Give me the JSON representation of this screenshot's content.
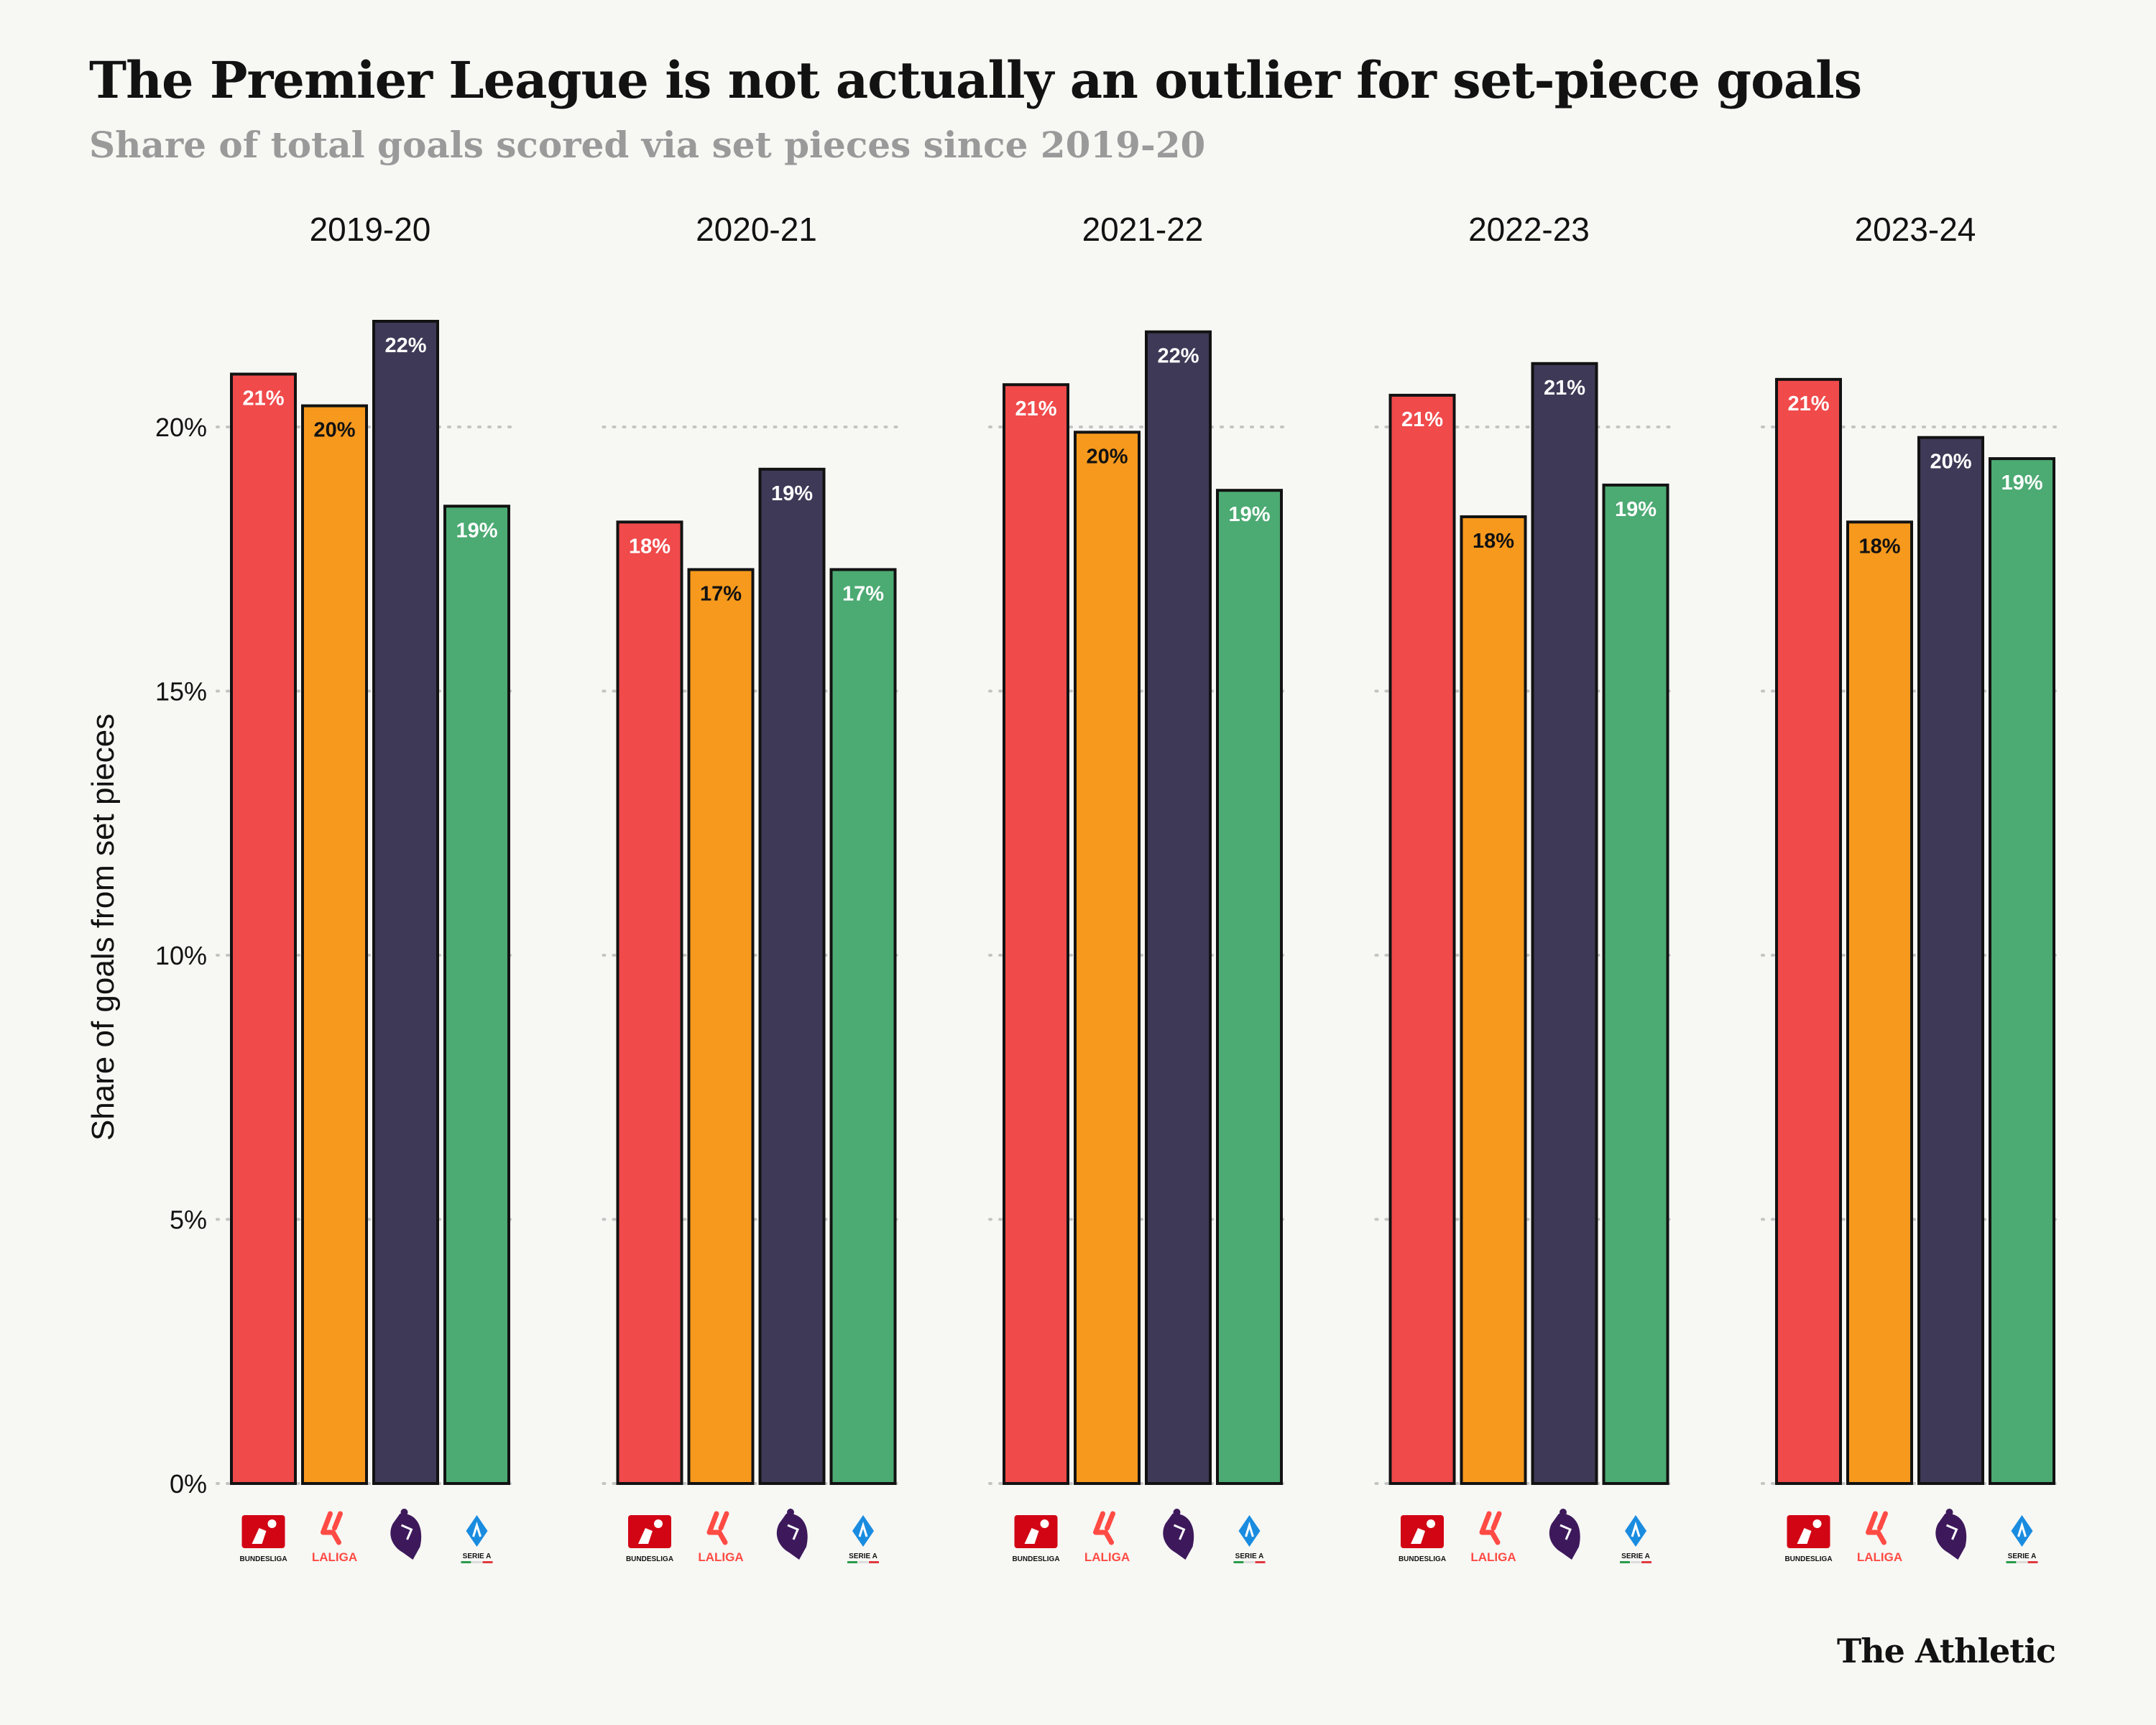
{
  "title": "The Premier League is not actually an outlier for set-piece goals",
  "subtitle": "Share of total goals scored via set pieces since 2019-20",
  "source": "The Athletic",
  "chart_data": {
    "type": "bar",
    "categories": [
      "2019-20",
      "2020-21",
      "2021-22",
      "2022-23",
      "2023-24"
    ],
    "ylabel": "Share of goals from set pieces",
    "ylim": [
      0,
      23
    ],
    "yticks": [
      0,
      5,
      10,
      15,
      20
    ],
    "ytick_labels": [
      "0%",
      "5%",
      "10%",
      "15%",
      "20%"
    ],
    "grid": "dotted horizontal",
    "series": [
      {
        "league": "Bundesliga",
        "color": "#f04a4b",
        "values": [
          21.0,
          18.2,
          20.8,
          20.6,
          20.9
        ],
        "labels": [
          "21%",
          "18%",
          "21%",
          "21%",
          "21%"
        ]
      },
      {
        "league": "LaLiga",
        "color": "#f7991d",
        "values": [
          20.4,
          17.3,
          19.9,
          18.3,
          18.2
        ],
        "labels": [
          "20%",
          "17%",
          "20%",
          "18%",
          "18%"
        ]
      },
      {
        "league": "Premier League",
        "color": "#3d3956",
        "values": [
          22.0,
          19.2,
          21.8,
          21.2,
          19.8
        ],
        "labels": [
          "22%",
          "19%",
          "22%",
          "21%",
          "20%"
        ]
      },
      {
        "league": "Serie A",
        "color": "#4caa73",
        "values": [
          18.5,
          17.3,
          18.8,
          18.9,
          19.4
        ],
        "labels": [
          "19%",
          "17%",
          "19%",
          "19%",
          "19%"
        ]
      }
    ]
  },
  "logos": [
    {
      "icon": "bundesliga-logo-icon",
      "text": "BUNDESLIGA",
      "color": "#d20515"
    },
    {
      "icon": "laliga-logo-icon",
      "text": "LALIGA",
      "color": "#ff4b44"
    },
    {
      "icon": "premier-league-logo-icon",
      "text": "",
      "color": "#3d195b"
    },
    {
      "icon": "serie-a-logo-icon",
      "text": "SERIE A",
      "color": "#1a8ce0"
    }
  ]
}
